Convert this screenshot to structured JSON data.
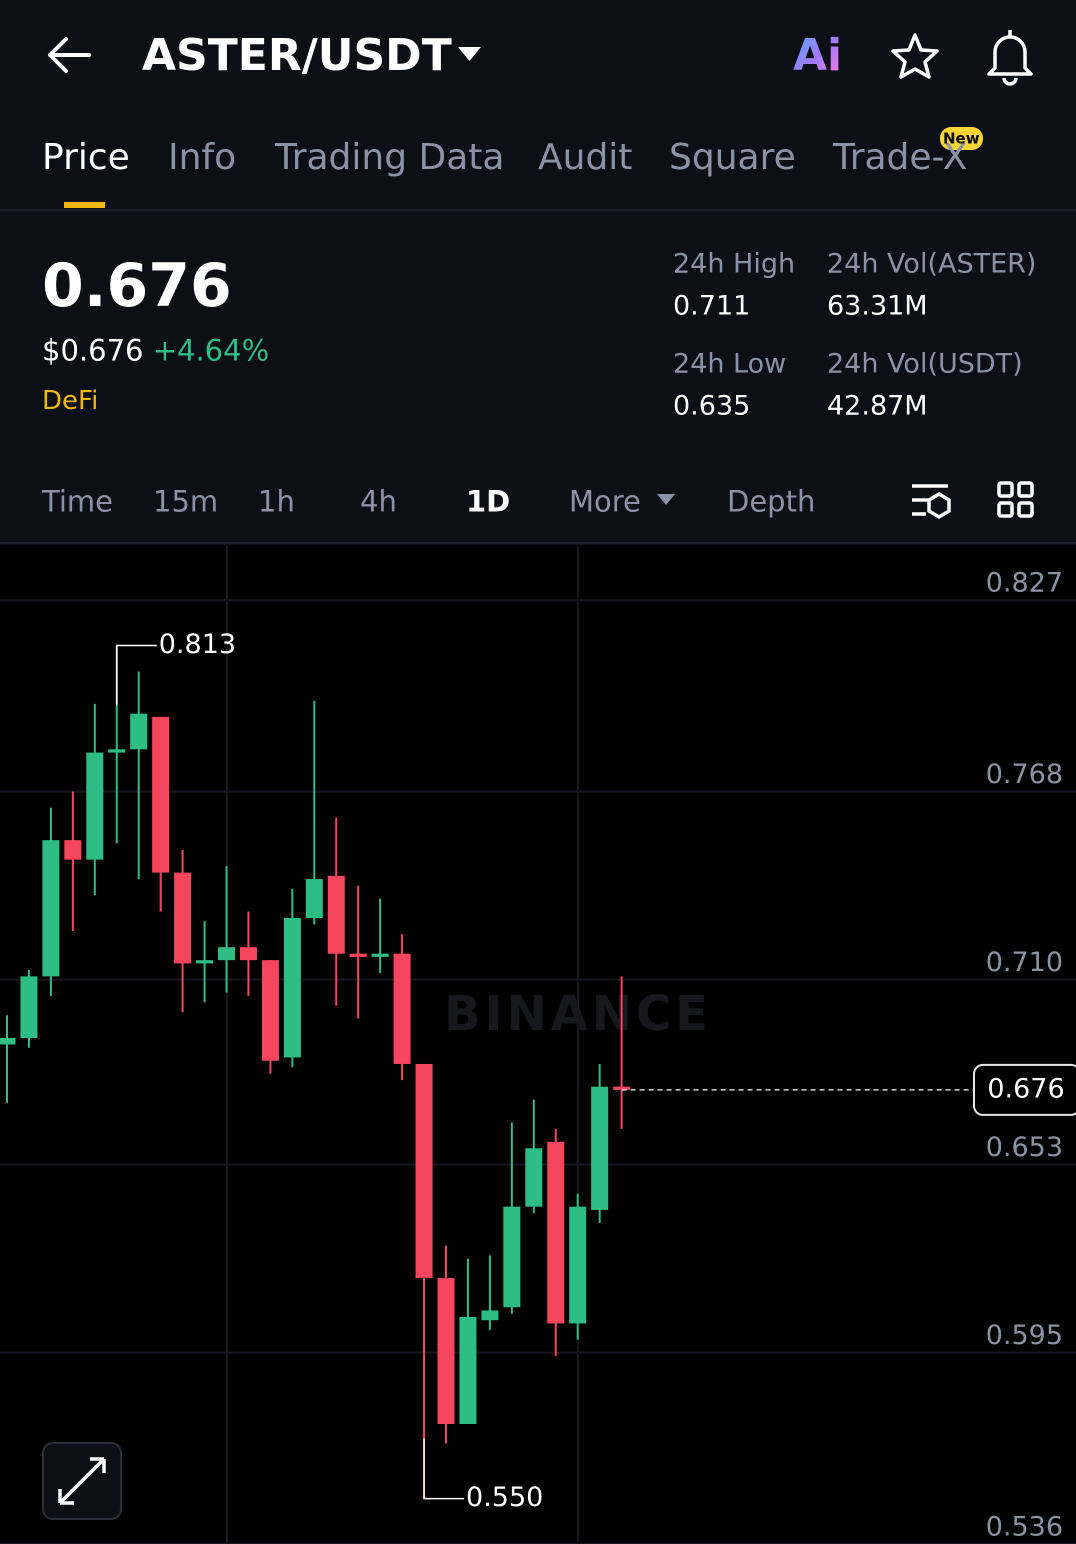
{
  "header": {
    "title": "ASTER/USDT",
    "ai": "Ai"
  },
  "tabs": {
    "items": [
      "Price",
      "Info",
      "Trading Data",
      "Audit",
      "Square",
      "Trade-X"
    ],
    "active": 0,
    "badge": "New",
    "badge_on": 5
  },
  "ticker": {
    "price": "0.676",
    "usd": "$0.676",
    "change": "+4.64%",
    "tag": "DeFi",
    "stats": [
      {
        "label": "24h High",
        "value": "0.711"
      },
      {
        "label": "24h Vol(ASTER)",
        "value": "63.31M"
      },
      {
        "label": "24h Low",
        "value": "0.635"
      },
      {
        "label": "24h Vol(USDT)",
        "value": "42.87M"
      }
    ]
  },
  "intervals": {
    "items": [
      "Time",
      "15m",
      "1h",
      "4h",
      "1D",
      "More",
      "Depth"
    ],
    "active": 4,
    "dropdown": 5
  },
  "chart_data": {
    "type": "candlestick",
    "watermark": "BINANCE",
    "open": [
      0.69,
      0.692,
      0.711,
      0.753,
      0.747,
      0.78,
      0.781,
      0.791,
      0.743,
      0.715,
      0.716,
      0.72,
      0.716,
      0.686,
      0.729,
      0.742,
      0.718,
      0.717,
      0.718,
      0.684,
      0.618,
      0.573,
      0.605,
      0.609,
      0.64,
      0.66,
      0.604,
      0.639,
      0.677
    ],
    "high": [
      0.699,
      0.713,
      0.763,
      0.768,
      0.795,
      0.813,
      0.805,
      0.791,
      0.75,
      0.728,
      0.745,
      0.731,
      0.716,
      0.738,
      0.796,
      0.76,
      0.739,
      0.735,
      0.724,
      0.684,
      0.628,
      0.624,
      0.625,
      0.666,
      0.673,
      0.664,
      0.644,
      0.684,
      0.711
    ],
    "low": [
      0.672,
      0.689,
      0.705,
      0.725,
      0.736,
      0.752,
      0.741,
      0.731,
      0.7,
      0.703,
      0.706,
      0.705,
      0.681,
      0.683,
      0.727,
      0.702,
      0.698,
      0.712,
      0.679,
      0.55,
      0.567,
      0.573,
      0.602,
      0.607,
      0.638,
      0.594,
      0.599,
      0.635,
      0.664
    ],
    "close": [
      0.692,
      0.711,
      0.753,
      0.747,
      0.78,
      0.781,
      0.792,
      0.743,
      0.715,
      0.716,
      0.72,
      0.716,
      0.685,
      0.729,
      0.741,
      0.718,
      0.717,
      0.718,
      0.684,
      0.618,
      0.573,
      0.606,
      0.608,
      0.64,
      0.658,
      0.604,
      0.64,
      0.677,
      0.676
    ],
    "up_color": "#2ebd85",
    "down_color": "#f6465d",
    "ylim": [
      0.536,
      0.844
    ],
    "yticks": [
      {
        "value": 0.536,
        "label": "0.536"
      },
      0.595,
      0.653,
      {
        "value": 0.71,
        "label": "0.710"
      },
      0.768,
      0.827
    ],
    "grid": true,
    "annotations": [
      {
        "value": 0.813,
        "label": "0.813",
        "index": 5
      },
      {
        "value": 0.55,
        "label": "0.550",
        "index": 19
      }
    ],
    "last_price": {
      "value": 0.676,
      "label": "0.676"
    }
  }
}
